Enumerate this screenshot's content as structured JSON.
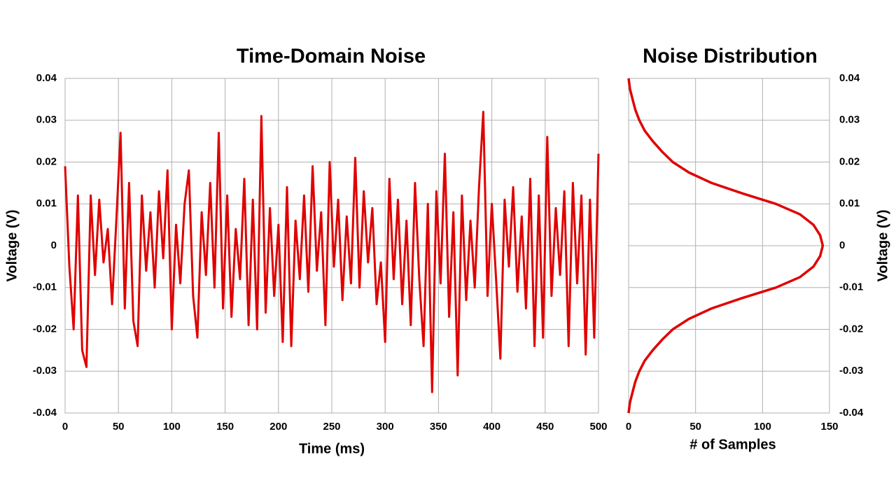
{
  "chart_data": [
    {
      "type": "line",
      "title": "Time-Domain Noise",
      "x_label": "Time (ms)",
      "y_label": "Voltage (V)",
      "x": [
        0,
        4,
        8,
        12,
        16,
        20,
        24,
        28,
        32,
        36,
        40,
        44,
        48,
        52,
        56,
        60,
        64,
        68,
        72,
        76,
        80,
        84,
        88,
        92,
        96,
        100,
        104,
        108,
        112,
        116,
        120,
        124,
        128,
        132,
        136,
        140,
        144,
        148,
        152,
        156,
        160,
        164,
        168,
        172,
        176,
        180,
        184,
        188,
        192,
        196,
        200,
        204,
        208,
        212,
        216,
        220,
        224,
        228,
        232,
        236,
        240,
        244,
        248,
        252,
        256,
        260,
        264,
        268,
        272,
        276,
        280,
        284,
        288,
        292,
        296,
        300,
        304,
        308,
        312,
        316,
        320,
        324,
        328,
        332,
        336,
        340,
        344,
        348,
        352,
        356,
        360,
        364,
        368,
        372,
        376,
        380,
        384,
        388,
        392,
        396,
        400,
        404,
        408,
        412,
        416,
        420,
        424,
        428,
        432,
        436,
        440,
        444,
        448,
        452,
        456,
        460,
        464,
        468,
        472,
        476,
        480,
        484,
        488,
        492,
        496,
        500
      ],
      "values": [
        0.019,
        -0.005,
        -0.02,
        0.012,
        -0.025,
        -0.029,
        0.012,
        -0.007,
        0.011,
        -0.004,
        0.004,
        -0.014,
        0.006,
        0.027,
        -0.015,
        0.015,
        -0.018,
        -0.024,
        0.012,
        -0.006,
        0.008,
        -0.01,
        0.013,
        -0.003,
        0.018,
        -0.02,
        0.005,
        -0.009,
        0.01,
        0.018,
        -0.012,
        -0.022,
        0.008,
        -0.007,
        0.015,
        -0.01,
        0.027,
        -0.015,
        0.012,
        -0.017,
        0.004,
        -0.008,
        0.016,
        -0.019,
        0.011,
        -0.02,
        0.031,
        -0.016,
        0.009,
        -0.012,
        0.005,
        -0.023,
        0.014,
        -0.024,
        0.006,
        -0.008,
        0.012,
        -0.011,
        0.019,
        -0.006,
        0.008,
        -0.019,
        0.02,
        -0.005,
        0.011,
        -0.013,
        0.007,
        -0.009,
        0.021,
        -0.01,
        0.013,
        -0.004,
        0.009,
        -0.014,
        -0.004,
        -0.023,
        0.016,
        -0.008,
        0.011,
        -0.014,
        0.006,
        -0.019,
        0.015,
        -0.008,
        -0.024,
        0.01,
        -0.035,
        0.013,
        -0.009,
        0.022,
        -0.017,
        0.008,
        -0.031,
        0.012,
        -0.013,
        0.006,
        -0.01,
        0.014,
        0.032,
        -0.012,
        0.01,
        -0.008,
        -0.027,
        0.011,
        -0.005,
        0.014,
        -0.011,
        0.007,
        -0.015,
        0.016,
        -0.024,
        0.012,
        -0.022,
        0.026,
        -0.012,
        0.009,
        -0.007,
        0.013,
        -0.024,
        0.015,
        -0.009,
        0.012,
        -0.026,
        0.011,
        -0.022,
        0.022
      ],
      "color": "#e00000",
      "xlim": [
        0,
        500
      ],
      "xticks": [
        0,
        50,
        100,
        150,
        200,
        250,
        300,
        350,
        400,
        450,
        500
      ],
      "ylim": [
        -0.04,
        0.04
      ],
      "yticks": [
        -0.04,
        -0.03,
        -0.02,
        -0.01,
        0,
        0.01,
        0.02,
        0.03,
        0.04
      ],
      "grid": true,
      "y_axis_side": "left"
    },
    {
      "type": "distribution",
      "title": "Noise Distribution",
      "x_label": "# of Samples",
      "y_label": "Voltage (V)",
      "y": [
        -0.04,
        -0.0375,
        -0.035,
        -0.0325,
        -0.03,
        -0.0275,
        -0.025,
        -0.0225,
        -0.02,
        -0.0175,
        -0.015,
        -0.0125,
        -0.01,
        -0.0075,
        -0.005,
        -0.0025,
        0,
        0.0025,
        0.005,
        0.0075,
        0.01,
        0.0125,
        0.015,
        0.0175,
        0.02,
        0.0225,
        0.025,
        0.0275,
        0.03,
        0.0325,
        0.035,
        0.0375,
        0.04
      ],
      "values": [
        0,
        1,
        3,
        5,
        8,
        12,
        18,
        25,
        33,
        45,
        62,
        85,
        110,
        128,
        138,
        143,
        145,
        143,
        138,
        128,
        110,
        85,
        62,
        45,
        33,
        25,
        18,
        12,
        8,
        5,
        3,
        1,
        0
      ],
      "color": "#e00000",
      "xlim": [
        0,
        150
      ],
      "xticks": [
        0,
        50,
        100,
        150
      ],
      "ylim": [
        -0.04,
        0.04
      ],
      "yticks": [
        -0.04,
        -0.03,
        -0.02,
        -0.01,
        0,
        0.01,
        0.02,
        0.03,
        0.04
      ],
      "grid": true,
      "y_axis_side": "right"
    }
  ]
}
